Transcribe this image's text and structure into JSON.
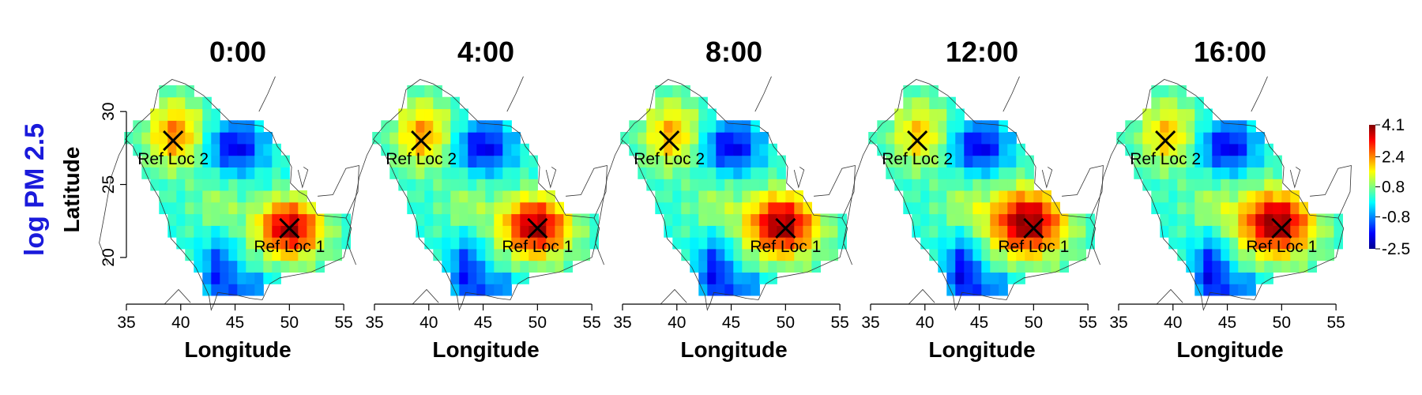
{
  "figure": {
    "left_title": "log PM 2.5",
    "left_title_color": "#1a1adb",
    "ylabel": "Latitude",
    "xlabel": "Longitude"
  },
  "chart_data": {
    "type": "heatmap",
    "panels": [
      {
        "title": "0:00",
        "shift": 0.0
      },
      {
        "title": "4:00",
        "shift": 0.15
      },
      {
        "title": "8:00",
        "shift": 0.3
      },
      {
        "title": "12:00",
        "shift": 0.5
      },
      {
        "title": "16:00",
        "shift": 0.45
      }
    ],
    "xlabel": "Longitude",
    "ylabel": "Latitude",
    "xlim": [
      35,
      55.5
    ],
    "ylim": [
      16.8,
      32.5
    ],
    "xticks": [
      "35",
      "40",
      "45",
      "50",
      "55"
    ],
    "xtick_values": [
      35,
      40,
      45,
      50,
      55
    ],
    "yticks": [
      "20",
      "25",
      "30"
    ],
    "ytick_values": [
      20,
      25,
      30
    ],
    "colorbar": {
      "ticks": [
        "4.1",
        "2.4",
        "0.8",
        "-0.8",
        "-2.5"
      ],
      "tick_values": [
        4.1,
        2.4,
        0.8,
        -0.8,
        -2.5
      ],
      "min": -2.5,
      "max": 4.1,
      "colors": [
        "#00008f",
        "#0000ff",
        "#0080ff",
        "#00ffff",
        "#80ff80",
        "#ffff00",
        "#ff8000",
        "#ff0000",
        "#800000"
      ]
    },
    "reference_points": [
      {
        "label": "Ref Loc 1",
        "lon": 50.0,
        "lat": 22.0
      },
      {
        "label": "Ref Loc 2",
        "lon": 39.3,
        "lat": 28.0
      }
    ]
  }
}
